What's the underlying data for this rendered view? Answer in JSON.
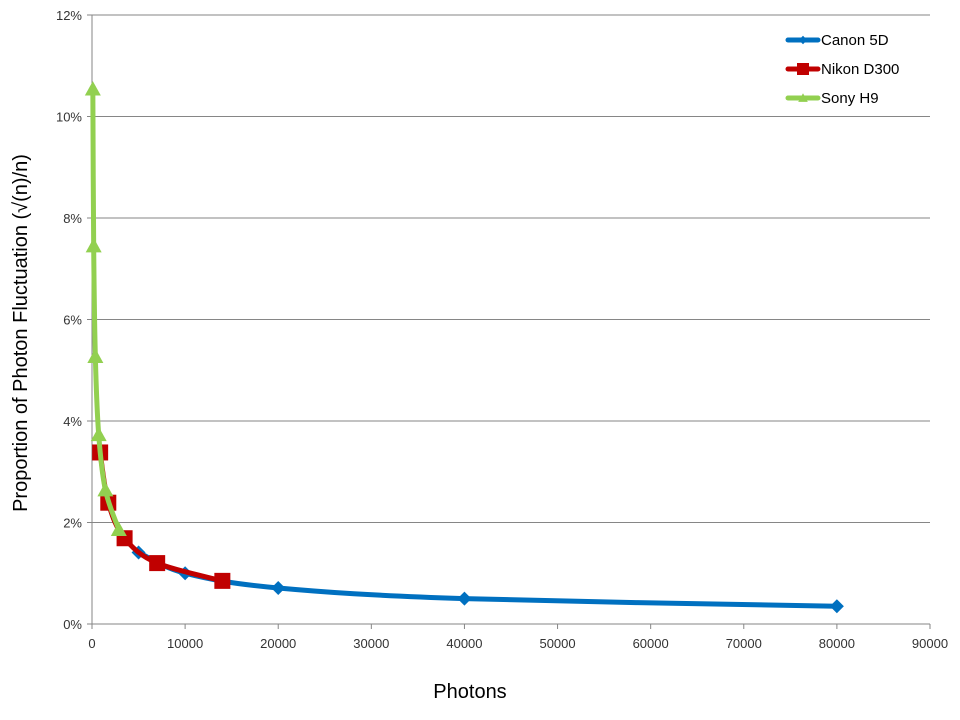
{
  "chart_data": {
    "type": "scatter",
    "xlabel": "Photons",
    "ylabel": "Proportion of Photon Fluctuation (√(n)/n)",
    "xlim": [
      0,
      90000
    ],
    "ylim": [
      0,
      0.12
    ],
    "x_ticks": [
      0,
      10000,
      20000,
      30000,
      40000,
      50000,
      60000,
      70000,
      80000,
      90000
    ],
    "y_ticks": [
      0,
      0.02,
      0.04,
      0.06,
      0.08,
      0.1,
      0.12
    ],
    "y_tick_format": "percent",
    "grid": "horizontal",
    "legend_position": "top-right",
    "series": [
      {
        "name": "Canon 5D",
        "color": "#0070C0",
        "marker": "diamond",
        "x": [
          5000,
          10000,
          20000,
          40000,
          80000
        ],
        "y": [
          0.0141,
          0.01,
          0.0071,
          0.005,
          0.0035
        ]
      },
      {
        "name": "Nikon D300",
        "color": "#C00000",
        "marker": "square",
        "x": [
          875,
          1750,
          3500,
          7000,
          14000
        ],
        "y": [
          0.0338,
          0.0239,
          0.0169,
          0.012,
          0.0085
        ]
      },
      {
        "name": "Sony H9",
        "color": "#92D050",
        "marker": "triangle",
        "x": [
          90,
          180,
          360,
          720,
          1440,
          2880
        ],
        "y": [
          0.1054,
          0.0745,
          0.0527,
          0.0373,
          0.0264,
          0.0186
        ]
      }
    ]
  }
}
